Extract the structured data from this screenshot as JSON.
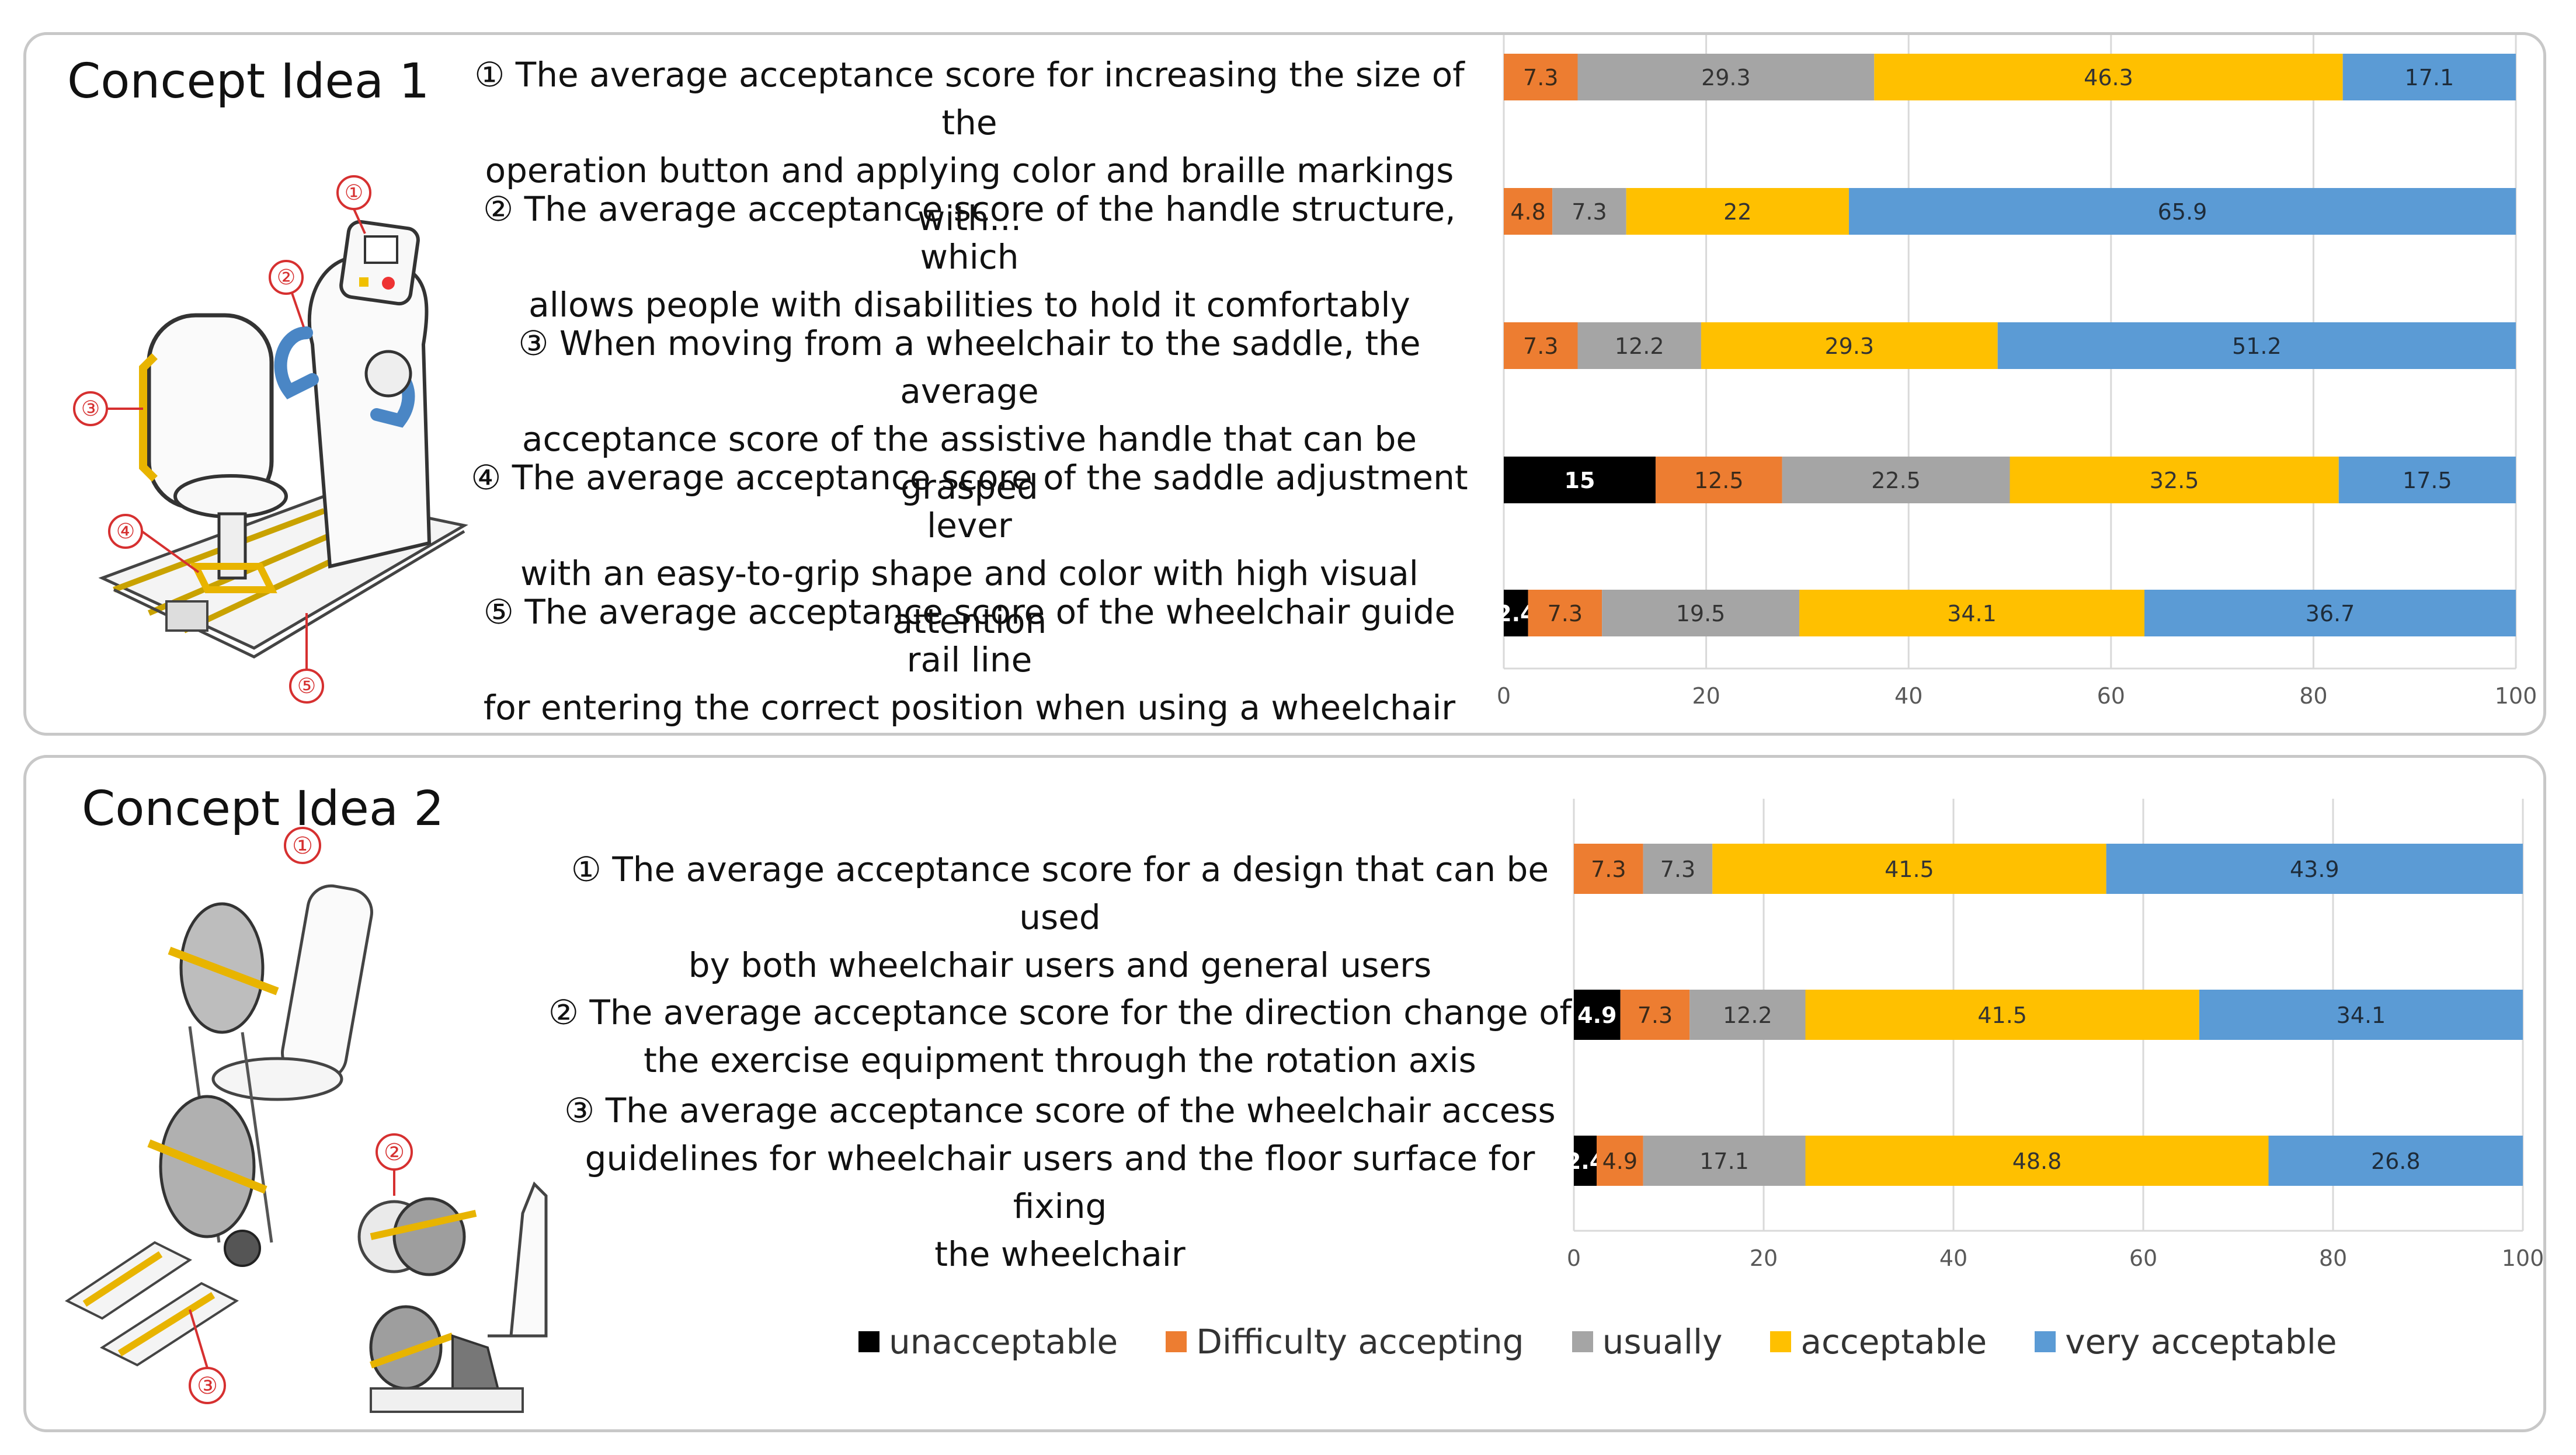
{
  "colors": {
    "unacceptable": "#000000",
    "difficulty": "#ed7d31",
    "usually": "#a5a5a5",
    "acceptable": "#ffc000",
    "very": "#5b9bd5"
  },
  "legend": [
    "unacceptable",
    "Difficulty accepting",
    "usually",
    "acceptable",
    "very acceptable"
  ],
  "panel1": {
    "title": "Concept Idea 1",
    "markers": [
      "①",
      "②",
      "③",
      "④",
      "⑤"
    ],
    "questions": [
      [
        "① The average acceptance score for increasing the size of the",
        "operation button and applying color and braille markings with..."
      ],
      [
        "② The average acceptance score of the handle structure, which",
        "allows people with disabilities to hold it comfortably"
      ],
      [
        "③ When moving from a wheelchair to the saddle, the average",
        "acceptance score of the assistive handle that can be grasped"
      ],
      [
        "④ The average acceptance score of the saddle adjustment lever",
        "with an easy-to-grip shape and color with high visual attention"
      ],
      [
        "⑤ The average acceptance score of the wheelchair guide rail line",
        "for entering the correct position when using a wheelchair"
      ]
    ]
  },
  "panel2": {
    "title": "Concept Idea 2",
    "markers": [
      "①",
      "②",
      "③"
    ],
    "questions": [
      [
        "① The average acceptance score for a design that can be used",
        "by both wheelchair users and general users"
      ],
      [
        "② The average acceptance score for the direction change of",
        "the exercise equipment through the rotation axis"
      ],
      [
        "③ The average acceptance score of the wheelchair access",
        "guidelines for wheelchair users and the floor surface for fixing",
        "the wheelchair"
      ]
    ]
  },
  "chart_data": [
    {
      "type": "bar",
      "orientation": "horizontal",
      "stacked": true,
      "title": "Concept Idea 1",
      "categories": [
        "①",
        "②",
        "③",
        "④",
        "⑤"
      ],
      "xlim": [
        0,
        100
      ],
      "xticks": [
        0,
        20,
        40,
        60,
        80,
        100
      ],
      "grid": true,
      "series": [
        {
          "name": "unacceptable",
          "values": [
            0,
            0,
            0,
            15,
            2.4
          ]
        },
        {
          "name": "Difficulty accepting",
          "values": [
            7.3,
            4.8,
            7.3,
            12.5,
            7.3
          ]
        },
        {
          "name": "usually",
          "values": [
            29.3,
            7.3,
            12.2,
            22.5,
            19.5
          ]
        },
        {
          "name": "acceptable",
          "values": [
            46.3,
            22,
            29.3,
            32.5,
            34.1
          ]
        },
        {
          "name": "very acceptable",
          "values": [
            17.1,
            65.9,
            51.2,
            17.5,
            36.7
          ]
        }
      ]
    },
    {
      "type": "bar",
      "orientation": "horizontal",
      "stacked": true,
      "title": "Concept Idea 2",
      "categories": [
        "①",
        "②",
        "③"
      ],
      "xlim": [
        0,
        100
      ],
      "xticks": [
        0,
        20,
        40,
        60,
        80,
        100
      ],
      "grid": true,
      "series": [
        {
          "name": "unacceptable",
          "values": [
            0,
            4.9,
            2.4
          ]
        },
        {
          "name": "Difficulty accepting",
          "values": [
            7.3,
            7.3,
            4.9
          ]
        },
        {
          "name": "usually",
          "values": [
            7.3,
            12.2,
            17.1
          ]
        },
        {
          "name": "acceptable",
          "values": [
            41.5,
            41.5,
            48.8
          ]
        },
        {
          "name": "very acceptable",
          "values": [
            43.9,
            34.1,
            26.8
          ]
        }
      ]
    }
  ]
}
